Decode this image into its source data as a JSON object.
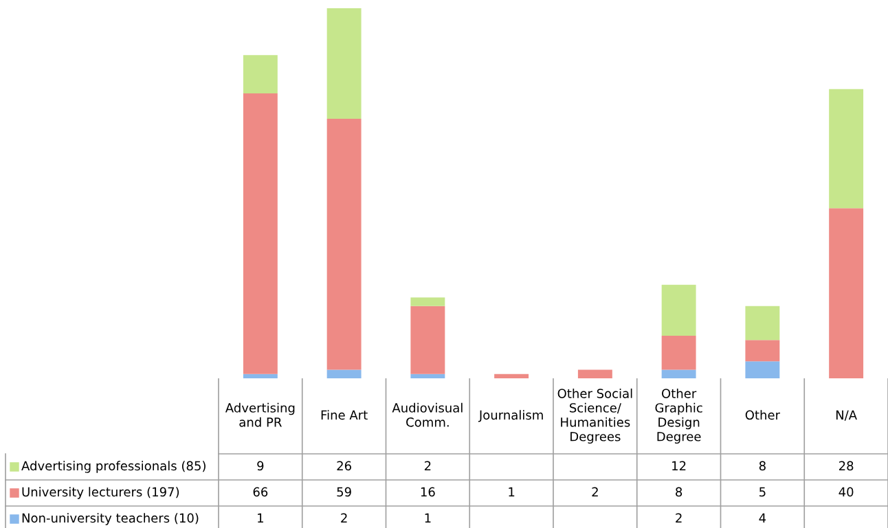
{
  "chart_data": {
    "type": "bar",
    "stacked": true,
    "data_labels": true,
    "legend": "bottom left",
    "categories": [
      "Advertising\nand PR",
      "Fine Art",
      "Audiovisual\nComm.",
      "Journalism",
      "Other Social\nScience/\nHumanities\nDegrees",
      "Other\nGraphic\nDesign\nDegree",
      "Other",
      "N/A"
    ],
    "series": [
      {
        "name": "Non-university teachers (10)",
        "color": "#88b8ec",
        "values": [
          1,
          2,
          1,
          null,
          null,
          2,
          4,
          null
        ]
      },
      {
        "name": "University lecturers (197)",
        "color": "#ee8a85",
        "values": [
          66,
          59,
          16,
          1,
          2,
          8,
          5,
          40
        ]
      },
      {
        "name": "Advertising professionals (85)",
        "color": "#c6e68c",
        "values": [
          9,
          26,
          2,
          null,
          null,
          12,
          8,
          28
        ]
      }
    ]
  }
}
